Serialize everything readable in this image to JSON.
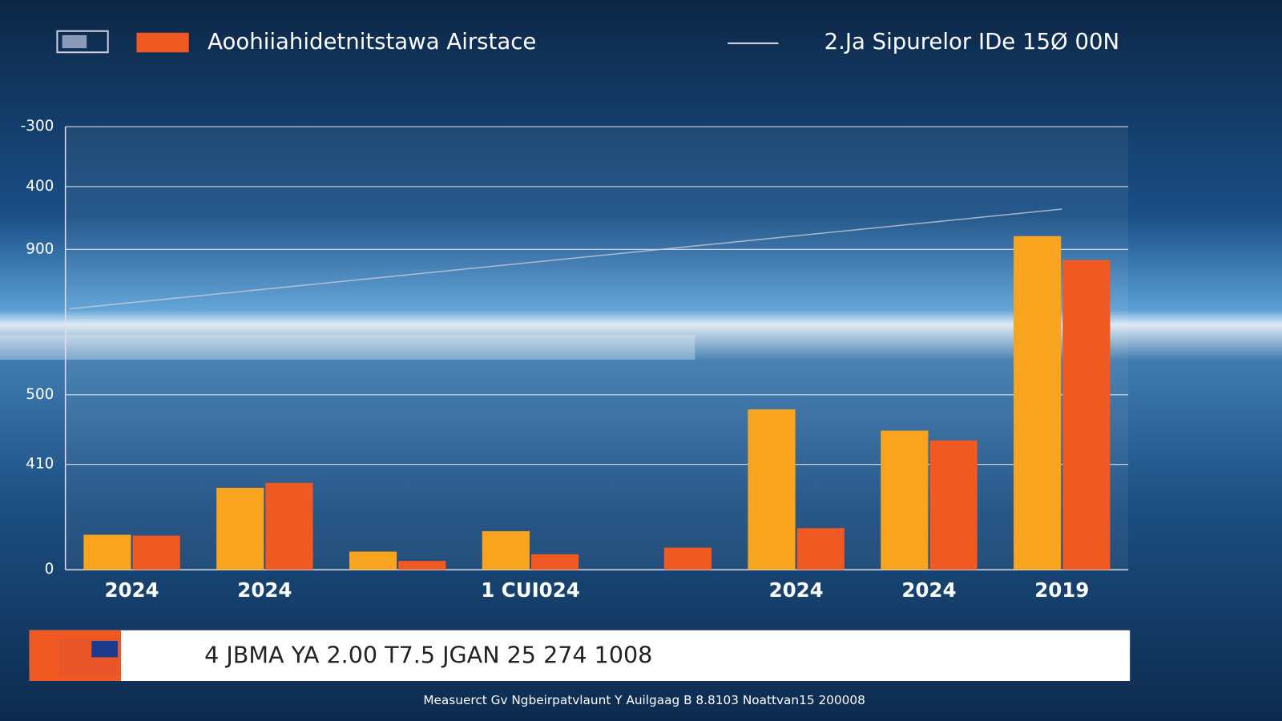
{
  "chart_data": {
    "type": "bar",
    "legend_text": "Aoohiiahidetnitstawa Airstace",
    "categories": [
      "2024",
      "2024",
      null,
      "1 CUI024",
      null,
      "2024",
      "2024",
      "2019"
    ],
    "series": [
      {
        "color": "#f8a41f",
        "values": [
          79,
          185,
          41,
          87,
          null,
          362,
          314,
          753
        ]
      },
      {
        "name": "Aoohiiahidetnitstawa Airstace",
        "color": "#f05a22",
        "values": [
          77,
          196,
          20,
          35,
          50,
          94,
          292,
          699
        ]
      }
    ],
    "trend": {
      "name": "2.Ja Sipurelor IDe 15Ø 00N",
      "color": "#c8ccd8",
      "values": [
        589,
        814
      ]
    },
    "ylim": [
      0,
      1000
    ],
    "yticks": [
      0,
      {
        "value": 238,
        "label": "410"
      },
      {
        "value": 395,
        "label": "500"
      },
      {
        "value": 723,
        "label": "900"
      },
      {
        "value": 865,
        "label": "400"
      },
      {
        "value": 1000,
        "label": "-300"
      }
    ],
    "grid": true,
    "banner": "4 JBMA YA 2.00 T7.5 JGAN 25 274 1008",
    "footer": "Measuerct Gv Ngbeirpatvlaunt Y Auilgaag B 8.8103 Noattvan15 200008"
  }
}
